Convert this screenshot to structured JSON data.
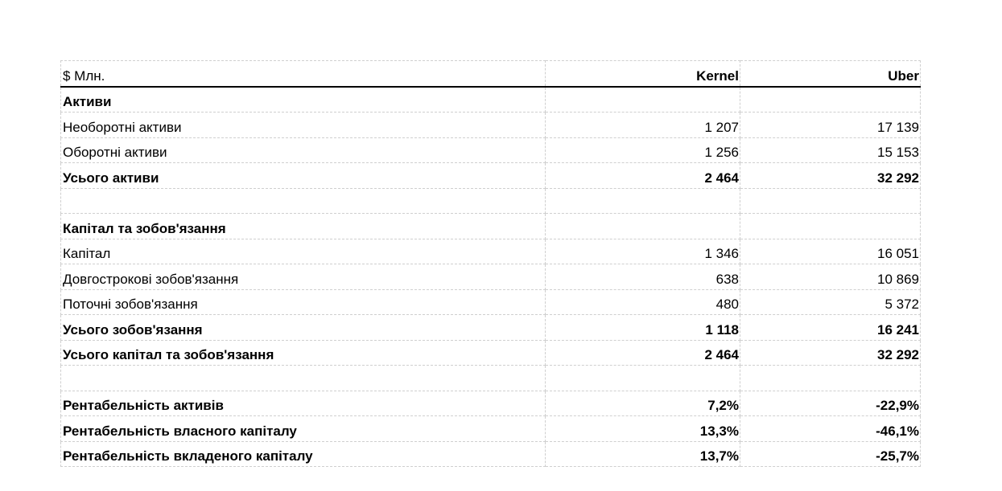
{
  "table": {
    "header": {
      "label": "$ Млн.",
      "col1": "Kernel",
      "col2": "Uber"
    },
    "rows": [
      {
        "label": "Активи",
        "kernel": "",
        "uber": "",
        "bold": true
      },
      {
        "label": "Необоротні активи",
        "kernel": "1 207",
        "uber": "17 139",
        "bold": false
      },
      {
        "label": "Оборотні активи",
        "kernel": "1 256",
        "uber": "15 153",
        "bold": false
      },
      {
        "label": "Усього активи",
        "kernel": "2 464",
        "uber": "32 292",
        "bold": true
      },
      {
        "label": "",
        "kernel": "",
        "uber": "",
        "bold": false
      },
      {
        "label": "Капітал та зобов'язання",
        "kernel": "",
        "uber": "",
        "bold": true
      },
      {
        "label": "Капітал",
        "kernel": "1 346",
        "uber": "16 051",
        "bold": false
      },
      {
        "label": "Довгострокові зобов'язання",
        "kernel": "638",
        "uber": "10 869",
        "bold": false
      },
      {
        "label": "Поточні зобов'язання",
        "kernel": "480",
        "uber": "5 372",
        "bold": false
      },
      {
        "label": "Усього зобов'язання",
        "kernel": "1 118",
        "uber": "16 241",
        "bold": true
      },
      {
        "label": "Усього капітал та зобов'язання",
        "kernel": "2 464",
        "uber": "32 292",
        "bold": true
      },
      {
        "label": "",
        "kernel": "",
        "uber": "",
        "bold": false
      },
      {
        "label": "Рентабельність активів",
        "kernel": "7,2%",
        "uber": "-22,9%",
        "bold": true
      },
      {
        "label": "Рентабельність власного капіталу",
        "kernel": "13,3%",
        "uber": "-46,1%",
        "bold": true
      },
      {
        "label": "Рентабельність вкладеного капіталу",
        "kernel": "13,7%",
        "uber": "-25,7%",
        "bold": true
      }
    ]
  }
}
